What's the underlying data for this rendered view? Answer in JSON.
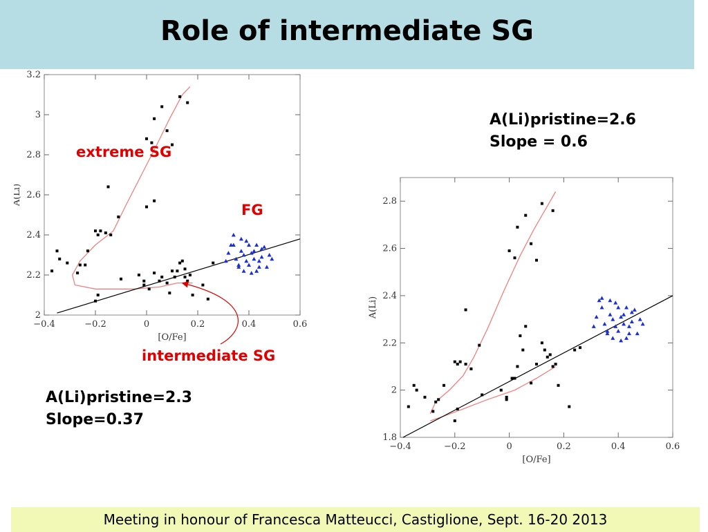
{
  "slide": {
    "title": "Role of intermediate SG",
    "footer": "Meeting in honour of Francesca Matteucci, Castiglione, Sept. 16-20 2013"
  },
  "annotations": {
    "left_line1": "A(Li)pristine=2.3",
    "left_line2": "Slope=0.37",
    "right_line1": "A(Li)pristine=2.6",
    "right_line2": "Slope = 0.6",
    "extreme": "extreme SG",
    "fg": "FG",
    "intermediate": "intermediate SG"
  },
  "colors": {
    "title_bg": "#b7dde4",
    "footer_bg": "#f2f8b6",
    "annotation_red": "#e00000",
    "fg_points": "#1a2fd6",
    "model_curve": "#f08080"
  },
  "chart_data": [
    {
      "type": "scatter",
      "xlabel": "[O/Fe]",
      "ylabel": "A(Li)",
      "xlim": [
        -0.4,
        0.6
      ],
      "ylim": [
        2.0,
        3.2
      ],
      "xticks": [
        "−0.4",
        "−0.2",
        "0",
        "0.2",
        "0.4",
        "0.6"
      ],
      "yticks": [
        "2",
        "2.2",
        "2.4",
        "2.6",
        "2.8",
        "3",
        "3.2"
      ],
      "pristine_ALi": 2.3,
      "slope": 0.37,
      "fit_line": [
        [
          -0.35,
          2.01
        ],
        [
          0.6,
          2.38
        ]
      ],
      "sg_points": [
        [
          -0.37,
          2.22
        ],
        [
          -0.35,
          2.32
        ],
        [
          -0.34,
          2.28
        ],
        [
          -0.31,
          2.26
        ],
        [
          -0.27,
          2.21
        ],
        [
          -0.26,
          2.25
        ],
        [
          -0.24,
          2.25
        ],
        [
          -0.23,
          2.32
        ],
        [
          -0.2,
          2.42
        ],
        [
          -0.19,
          2.4
        ],
        [
          -0.18,
          2.42
        ],
        [
          -0.16,
          2.41
        ],
        [
          -0.15,
          2.64
        ],
        [
          -0.14,
          2.4
        ],
        [
          -0.11,
          2.49
        ],
        [
          -0.2,
          2.07
        ],
        [
          -0.19,
          2.1
        ],
        [
          -0.1,
          2.18
        ],
        [
          -0.03,
          2.2
        ],
        [
          -0.01,
          2.17
        ],
        [
          -0.01,
          2.15
        ],
        [
          0.01,
          2.13
        ],
        [
          0.03,
          2.21
        ],
        [
          0.05,
          2.17
        ],
        [
          0.06,
          2.19
        ],
        [
          0.08,
          2.16
        ],
        [
          0.09,
          2.11
        ],
        [
          0.1,
          2.22
        ],
        [
          0.11,
          2.19
        ],
        [
          0.12,
          2.22
        ],
        [
          0.13,
          2.26
        ],
        [
          0.14,
          2.27
        ],
        [
          0.15,
          2.23
        ],
        [
          0.15,
          2.19
        ],
        [
          0.16,
          2.17
        ],
        [
          0.17,
          2.2
        ],
        [
          0.18,
          2.1
        ],
        [
          0.22,
          2.15
        ],
        [
          0.24,
          2.08
        ],
        [
          0.26,
          2.26
        ],
        [
          0.0,
          2.88
        ],
        [
          0.03,
          2.98
        ],
        [
          0.06,
          3.04
        ],
        [
          0.08,
          2.92
        ],
        [
          0.1,
          2.85
        ],
        [
          0.13,
          3.09
        ],
        [
          0.16,
          3.06
        ],
        [
          0.0,
          2.54
        ],
        [
          0.03,
          2.57
        ],
        [
          0.02,
          2.86
        ]
      ],
      "fg_points": [
        [
          0.31,
          2.27
        ],
        [
          0.32,
          2.31
        ],
        [
          0.33,
          2.35
        ],
        [
          0.34,
          2.4
        ],
        [
          0.35,
          2.28
        ],
        [
          0.36,
          2.25
        ],
        [
          0.37,
          2.32
        ],
        [
          0.37,
          2.38
        ],
        [
          0.38,
          2.22
        ],
        [
          0.38,
          2.3
        ],
        [
          0.39,
          2.27
        ],
        [
          0.4,
          2.35
        ],
        [
          0.4,
          2.25
        ],
        [
          0.41,
          2.31
        ],
        [
          0.42,
          2.28
        ],
        [
          0.43,
          2.35
        ],
        [
          0.43,
          2.22
        ],
        [
          0.44,
          2.27
        ],
        [
          0.45,
          2.33
        ],
        [
          0.45,
          2.29
        ],
        [
          0.46,
          2.34
        ],
        [
          0.47,
          2.24
        ],
        [
          0.48,
          2.3
        ],
        [
          0.49,
          2.28
        ],
        [
          0.41,
          2.21
        ],
        [
          0.36,
          2.24
        ],
        [
          0.34,
          2.35
        ],
        [
          0.44,
          2.24
        ],
        [
          0.39,
          2.37
        ],
        [
          0.42,
          2.32
        ]
      ],
      "model_curve": [
        [
          0.18,
          2.16
        ],
        [
          0.12,
          2.16
        ],
        [
          0.05,
          2.14
        ],
        [
          -0.05,
          2.13
        ],
        [
          -0.2,
          2.13
        ],
        [
          -0.28,
          2.15
        ],
        [
          -0.29,
          2.2
        ],
        [
          -0.26,
          2.27
        ],
        [
          -0.2,
          2.35
        ],
        [
          -0.13,
          2.42
        ],
        [
          -0.08,
          2.55
        ],
        [
          -0.02,
          2.7
        ],
        [
          0.04,
          2.85
        ],
        [
          0.09,
          2.98
        ],
        [
          0.14,
          3.1
        ],
        [
          0.17,
          3.14
        ]
      ]
    },
    {
      "type": "scatter",
      "xlabel": "[O/Fe]",
      "ylabel": "A(Li)",
      "xlim": [
        -0.4,
        0.6
      ],
      "ylim": [
        1.8,
        2.9
      ],
      "xticks": [
        "−0.4",
        "−0.2",
        "0",
        "0.2",
        "0.4",
        "0.6"
      ],
      "yticks": [
        "1.8",
        "2",
        "2.2",
        "2.4",
        "2.6",
        "2.8"
      ],
      "pristine_ALi": 2.6,
      "slope": 0.6,
      "fit_line": [
        [
          -0.39,
          1.8
        ],
        [
          0.6,
          2.4
        ]
      ],
      "sg_points": [
        [
          -0.37,
          1.93
        ],
        [
          -0.35,
          2.02
        ],
        [
          -0.34,
          2.0
        ],
        [
          -0.31,
          1.97
        ],
        [
          -0.28,
          1.91
        ],
        [
          -0.27,
          1.95
        ],
        [
          -0.26,
          1.96
        ],
        [
          -0.24,
          2.02
        ],
        [
          -0.2,
          2.12
        ],
        [
          -0.19,
          2.11
        ],
        [
          -0.18,
          2.12
        ],
        [
          -0.16,
          2.11
        ],
        [
          -0.16,
          2.34
        ],
        [
          -0.14,
          2.09
        ],
        [
          -0.11,
          2.19
        ],
        [
          -0.2,
          1.87
        ],
        [
          -0.19,
          1.92
        ],
        [
          -0.1,
          1.98
        ],
        [
          -0.03,
          2.0
        ],
        [
          -0.01,
          1.97
        ],
        [
          -0.01,
          1.96
        ],
        [
          0.01,
          2.05
        ],
        [
          0.02,
          2.05
        ],
        [
          0.03,
          2.1
        ],
        [
          0.04,
          2.23
        ],
        [
          0.05,
          2.17
        ],
        [
          0.06,
          2.27
        ],
        [
          0.08,
          2.03
        ],
        [
          0.1,
          2.11
        ],
        [
          0.12,
          2.2
        ],
        [
          0.13,
          2.17
        ],
        [
          0.14,
          2.14
        ],
        [
          0.15,
          2.15
        ],
        [
          0.16,
          2.1
        ],
        [
          0.17,
          2.11
        ],
        [
          0.18,
          2.02
        ],
        [
          0.22,
          1.93
        ],
        [
          0.24,
          2.17
        ],
        [
          0.26,
          2.18
        ],
        [
          0.0,
          2.59
        ],
        [
          0.02,
          2.56
        ],
        [
          0.03,
          2.69
        ],
        [
          0.06,
          2.74
        ],
        [
          0.08,
          2.62
        ],
        [
          0.1,
          2.55
        ],
        [
          0.12,
          2.79
        ],
        [
          0.16,
          2.76
        ]
      ],
      "fg_points": [
        [
          0.31,
          2.27
        ],
        [
          0.32,
          2.31
        ],
        [
          0.33,
          2.38
        ],
        [
          0.34,
          2.39
        ],
        [
          0.35,
          2.28
        ],
        [
          0.36,
          2.25
        ],
        [
          0.37,
          2.32
        ],
        [
          0.37,
          2.38
        ],
        [
          0.38,
          2.22
        ],
        [
          0.38,
          2.3
        ],
        [
          0.39,
          2.27
        ],
        [
          0.4,
          2.35
        ],
        [
          0.4,
          2.25
        ],
        [
          0.41,
          2.31
        ],
        [
          0.42,
          2.28
        ],
        [
          0.43,
          2.35
        ],
        [
          0.43,
          2.22
        ],
        [
          0.44,
          2.27
        ],
        [
          0.45,
          2.33
        ],
        [
          0.45,
          2.29
        ],
        [
          0.46,
          2.34
        ],
        [
          0.47,
          2.24
        ],
        [
          0.48,
          2.3
        ],
        [
          0.49,
          2.28
        ],
        [
          0.41,
          2.21
        ],
        [
          0.36,
          2.24
        ],
        [
          0.34,
          2.35
        ],
        [
          0.44,
          2.24
        ],
        [
          0.39,
          2.37
        ],
        [
          0.42,
          2.32
        ]
      ],
      "model_curves": [
        [
          [
            -0.29,
            1.9
          ],
          [
            -0.27,
            1.95
          ],
          [
            -0.22,
            2.0
          ],
          [
            -0.17,
            2.06
          ],
          [
            -0.13,
            2.14
          ],
          [
            -0.08,
            2.26
          ],
          [
            -0.02,
            2.42
          ],
          [
            0.04,
            2.57
          ],
          [
            0.09,
            2.68
          ],
          [
            0.13,
            2.76
          ],
          [
            0.17,
            2.84
          ]
        ],
        [
          [
            -0.29,
            1.87
          ],
          [
            -0.24,
            1.89
          ],
          [
            -0.17,
            1.92
          ],
          [
            -0.08,
            1.96
          ],
          [
            0.02,
            2.0
          ],
          [
            0.1,
            2.05
          ],
          [
            0.17,
            2.1
          ]
        ]
      ]
    }
  ]
}
